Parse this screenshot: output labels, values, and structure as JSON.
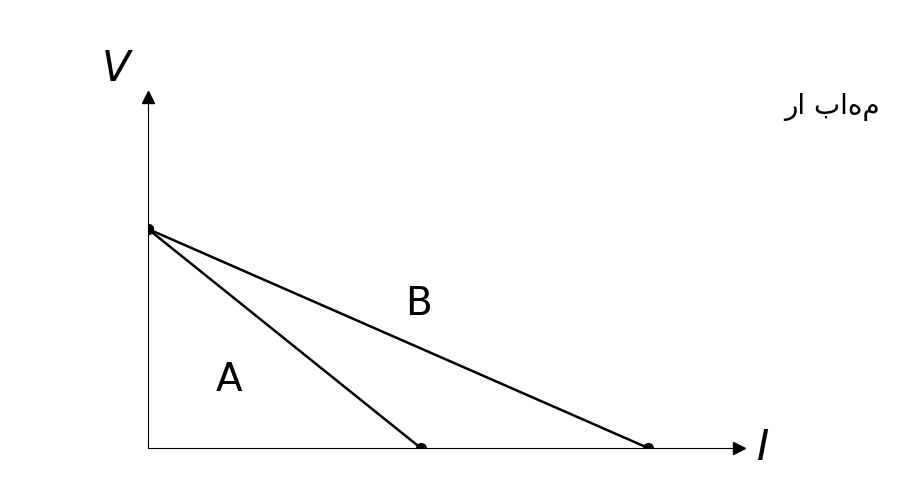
{
  "chart_data": {
    "type": "line",
    "x_label": "I",
    "y_label": "V",
    "annotations": [
      "را باهم"
    ],
    "series": [
      {
        "name": "A",
        "x": [
          0,
          6
        ],
        "values": [
          10,
          0
        ],
        "color": "#000000",
        "marker": "o",
        "line_style": "solid"
      },
      {
        "name": "B",
        "x": [
          0,
          11
        ],
        "values": [
          10,
          0
        ],
        "color": "#000000",
        "marker": "o",
        "line_style": "solid"
      }
    ],
    "xlim": [
      0,
      13
    ],
    "ylim": [
      0,
      16
    ],
    "xticks": [],
    "yticks": [],
    "tick_labels": false
  }
}
